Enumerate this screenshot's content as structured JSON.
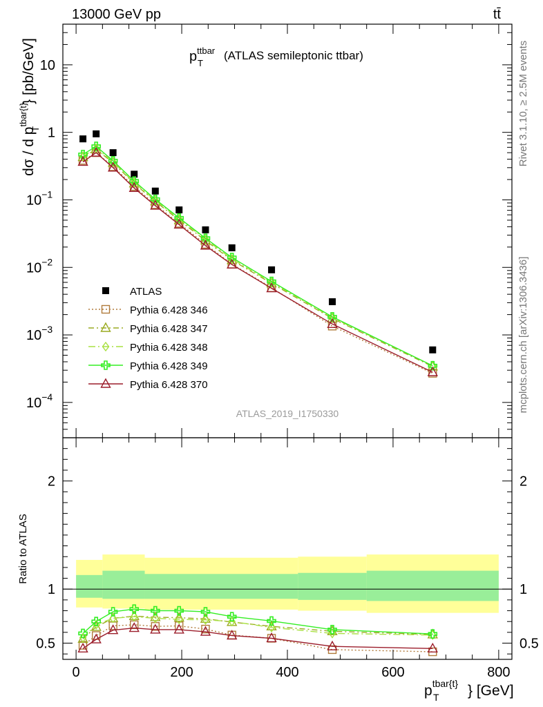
{
  "header": {
    "left": "13000 GeV pp",
    "right": "tt̄"
  },
  "side_labels": {
    "rivet": "Rivet 3.1.10, ≥ 2.5M events",
    "mcplots": "mcplots.cern.ch [arXiv:1306.3436]"
  },
  "watermark": "ATLAS_2019_I1750330",
  "plot_title": {
    "main": "p",
    "sub": "T",
    "sup": "ttbar",
    "rest": "(ATLAS semileptonic ttbar)"
  },
  "main_ylabel": {
    "a": "dσ / d p",
    "sub": "T",
    "sup": "tbar{t}",
    "b": "} [pb/GeV]"
  },
  "ratio_ylabel": "Ratio to ATLAS",
  "xlabel": {
    "a": "p",
    "sub": "T",
    "sup": "tbar{t}",
    "b": "} [GeV]"
  },
  "main_yticks": [
    {
      "v": 0.0001,
      "m": "10",
      "e": "−4"
    },
    {
      "v": 0.001,
      "m": "10",
      "e": "−3"
    },
    {
      "v": 0.01,
      "m": "10",
      "e": "−2"
    },
    {
      "v": 0.1,
      "m": "10",
      "e": "−1"
    },
    {
      "v": 1,
      "label": "1"
    },
    {
      "v": 10,
      "label": "10"
    }
  ],
  "ratio_yticks": [
    {
      "v": 0.5,
      "label": "0.5"
    },
    {
      "v": 1,
      "label": "1"
    },
    {
      "v": 2,
      "label": "2"
    }
  ],
  "xticks": [
    {
      "v": 0,
      "label": "0"
    },
    {
      "v": 200,
      "label": "200"
    },
    {
      "v": 400,
      "label": "400"
    },
    {
      "v": 600,
      "label": "600"
    },
    {
      "v": 800,
      "label": "800"
    }
  ],
  "chart_data": [
    {
      "type": "scatter",
      "panel": "main",
      "xlim": [
        -25,
        825
      ],
      "ylim": [
        3e-05,
        40
      ],
      "log_y": true,
      "x": [
        13,
        38,
        70,
        110,
        150,
        195,
        245,
        295,
        370,
        485,
        675
      ],
      "bins": [
        [
          0,
          25
        ],
        [
          25,
          50
        ],
        [
          50,
          90
        ],
        [
          90,
          130
        ],
        [
          130,
          170
        ],
        [
          170,
          220
        ],
        [
          220,
          270
        ],
        [
          270,
          320
        ],
        [
          320,
          420
        ],
        [
          420,
          550
        ],
        [
          550,
          800
        ]
      ],
      "series": [
        {
          "name": "ATLAS",
          "color": "#000000",
          "marker": "square",
          "values": [
            0.8,
            0.95,
            0.5,
            0.24,
            0.135,
            0.071,
            0.036,
            0.0195,
            0.0092,
            0.0031,
            0.0006
          ]
        },
        {
          "name": "Pythia 6.428 346",
          "color": "#b07a3a",
          "marker": "square-open",
          "dash": "2,3",
          "values": [
            0.385,
            0.5,
            0.31,
            0.158,
            0.085,
            0.045,
            0.022,
            0.0112,
            0.005,
            0.00135,
            0.00027
          ]
        },
        {
          "name": "Pythia 6.428 347",
          "color": "#9aaa20",
          "marker": "triangle-open",
          "dash": "8,4,2,4",
          "values": [
            0.43,
            0.56,
            0.355,
            0.175,
            0.095,
            0.05,
            0.025,
            0.0128,
            0.0058,
            0.00175,
            0.00034
          ]
        },
        {
          "name": "Pythia 6.428 348",
          "color": "#a8e040",
          "marker": "diamond-open",
          "dash": "10,4,2,4",
          "values": [
            0.44,
            0.58,
            0.365,
            0.18,
            0.098,
            0.052,
            0.026,
            0.0133,
            0.006,
            0.0018,
            0.00035
          ]
        },
        {
          "name": "Pythia 6.428 349",
          "color": "#33ee22",
          "marker": "cross",
          "dash": "",
          "values": [
            0.47,
            0.62,
            0.38,
            0.19,
            0.102,
            0.054,
            0.027,
            0.014,
            0.0062,
            0.00185,
            0.00035
          ]
        },
        {
          "name": "Pythia 6.428 370",
          "color": "#9b1c2a",
          "marker": "triangle-open",
          "dash": "",
          "values": [
            0.365,
            0.5,
            0.3,
            0.15,
            0.082,
            0.043,
            0.021,
            0.011,
            0.0049,
            0.00145,
            0.00028
          ]
        }
      ]
    },
    {
      "type": "line",
      "panel": "ratio",
      "xlim": [
        -25,
        825
      ],
      "ylim": [
        0.35,
        2.4
      ],
      "x": [
        13,
        38,
        70,
        110,
        150,
        195,
        245,
        295,
        370,
        485,
        675
      ],
      "bands": [
        {
          "color": "#ffff99",
          "edges": [
            [
              0,
              50,
              0.83,
              1.27
            ],
            [
              50,
              130,
              0.82,
              1.32
            ],
            [
              130,
              420,
              0.81,
              1.29
            ],
            [
              420,
              550,
              0.8,
              1.3
            ],
            [
              550,
              800,
              0.78,
              1.32
            ]
          ]
        },
        {
          "color": "#99ee99",
          "edges": [
            [
              0,
              50,
              0.92,
              1.13
            ],
            [
              50,
              130,
              0.91,
              1.17
            ],
            [
              130,
              420,
              0.91,
              1.14
            ],
            [
              420,
              550,
              0.9,
              1.15
            ],
            [
              550,
              800,
              0.89,
              1.17
            ]
          ]
        }
      ],
      "series": [
        {
          "name": "Pythia 6.428 346",
          "color": "#b07a3a",
          "marker": "square-open",
          "dash": "2,3",
          "values": [
            0.48,
            0.57,
            0.66,
            0.67,
            0.655,
            0.66,
            0.63,
            0.575,
            0.545,
            0.44,
            0.42
          ]
        },
        {
          "name": "Pythia 6.428 347",
          "color": "#9aaa20",
          "marker": "triangle-open",
          "dash": "8,4,2,4",
          "values": [
            0.54,
            0.65,
            0.73,
            0.75,
            0.74,
            0.735,
            0.725,
            0.695,
            0.655,
            0.61,
            0.58
          ]
        },
        {
          "name": "Pythia 6.428 348",
          "color": "#a8e040",
          "marker": "diamond-open",
          "dash": "10,4,2,4",
          "values": [
            0.55,
            0.67,
            0.73,
            0.745,
            0.73,
            0.72,
            0.715,
            0.7,
            0.645,
            0.59,
            0.575
          ]
        },
        {
          "name": "Pythia 6.428 349",
          "color": "#33ee22",
          "marker": "cross",
          "dash": "",
          "values": [
            0.59,
            0.7,
            0.79,
            0.815,
            0.8,
            0.8,
            0.79,
            0.745,
            0.705,
            0.625,
            0.585
          ]
        },
        {
          "name": "Pythia 6.428 370",
          "color": "#9b1c2a",
          "marker": "triangle-open",
          "dash": "",
          "values": [
            0.45,
            0.535,
            0.62,
            0.64,
            0.625,
            0.625,
            0.605,
            0.57,
            0.545,
            0.47,
            0.45
          ]
        }
      ]
    }
  ]
}
